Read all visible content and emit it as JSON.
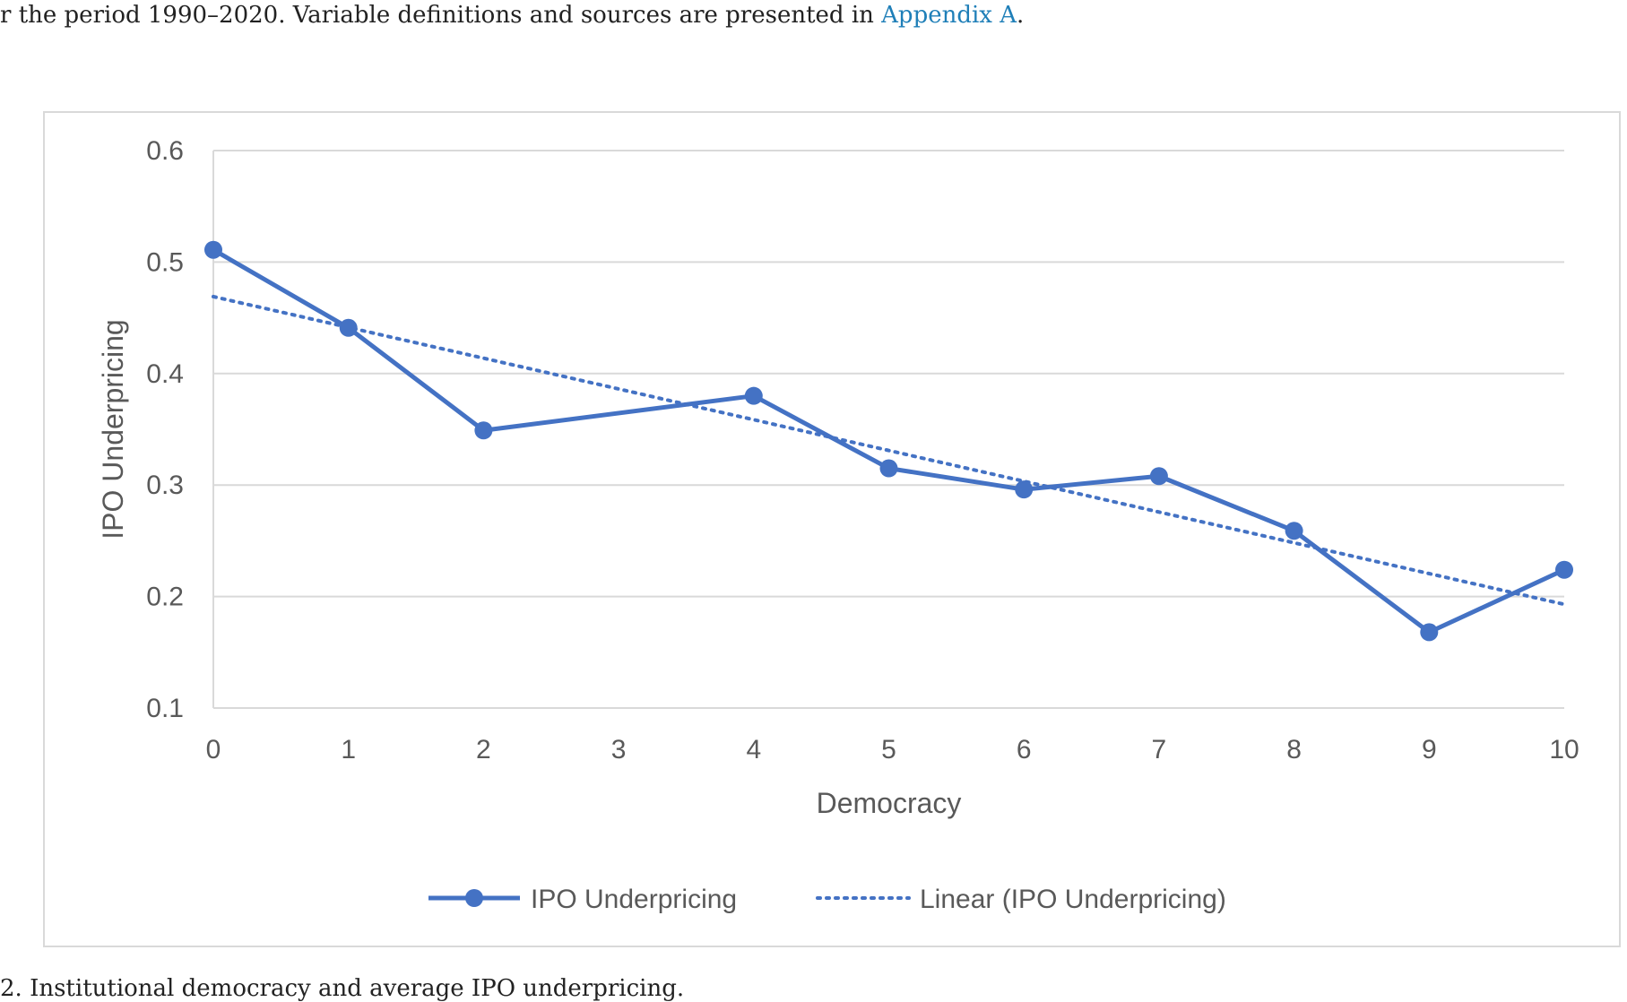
{
  "page": {
    "intro_text": "r the period 1990–2020. Variable definitions and sources are presented in ",
    "intro_link": "Appendix A",
    "intro_end": ".",
    "caption": "2. Institutional democracy and average IPO underpricing."
  },
  "colors": {
    "series": "#4472c4",
    "grid": "#d9d9d9",
    "text": "#595959",
    "link": "#1f7fb8"
  },
  "chart_data": {
    "type": "line",
    "title": "",
    "xlabel": "Democracy",
    "ylabel": "IPO Underpricing",
    "xlim": [
      0,
      10
    ],
    "ylim": [
      0.1,
      0.6
    ],
    "x_ticks": [
      "0",
      "1",
      "2",
      "3",
      "4",
      "5",
      "6",
      "7",
      "8",
      "9",
      "10"
    ],
    "y_ticks": [
      "0.1",
      "0.2",
      "0.3",
      "0.4",
      "0.5",
      "0.6"
    ],
    "grid": true,
    "legend_position": "bottom",
    "series": [
      {
        "name": "IPO Underpricing",
        "style": "solid-line-with-markers",
        "x": [
          0,
          1,
          2,
          4,
          5,
          6,
          7,
          8,
          9,
          10
        ],
        "y": [
          0.511,
          0.441,
          0.349,
          0.38,
          0.315,
          0.296,
          0.308,
          0.259,
          0.168,
          0.224
        ]
      },
      {
        "name": "Linear (IPO Underpricing)",
        "style": "dotted-trendline",
        "x": [
          0,
          10
        ],
        "y": [
          0.469,
          0.193
        ]
      }
    ]
  }
}
